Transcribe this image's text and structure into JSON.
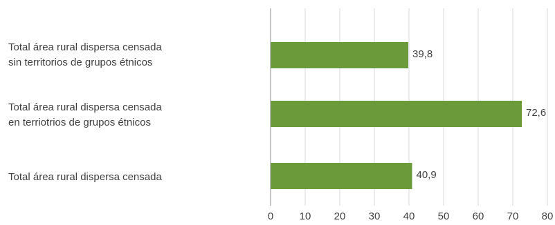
{
  "chart_data": {
    "type": "bar",
    "orientation": "horizontal",
    "categories": [
      [
        "Total área rural dispersa censada",
        "sin territorios de grupos étnicos"
      ],
      [
        "Total área rural dispersa censada",
        "en terriotrios de grupos étnicos"
      ],
      [
        "Total área rural dispersa censada"
      ]
    ],
    "values": [
      39.8,
      72.6,
      40.9
    ],
    "data_labels": [
      "39,8",
      "72,6",
      "40,9"
    ],
    "x_ticks": [
      "0",
      "10",
      "20",
      "30",
      "40",
      "50",
      "60",
      "70",
      "80"
    ],
    "xlim": [
      0,
      80
    ],
    "grid": "vertical",
    "legend": "none",
    "colors": {
      "bar": "#6a9a3a",
      "grid": "#d9d9d9",
      "axis": "#8c8c8c",
      "text": "#404040"
    }
  }
}
